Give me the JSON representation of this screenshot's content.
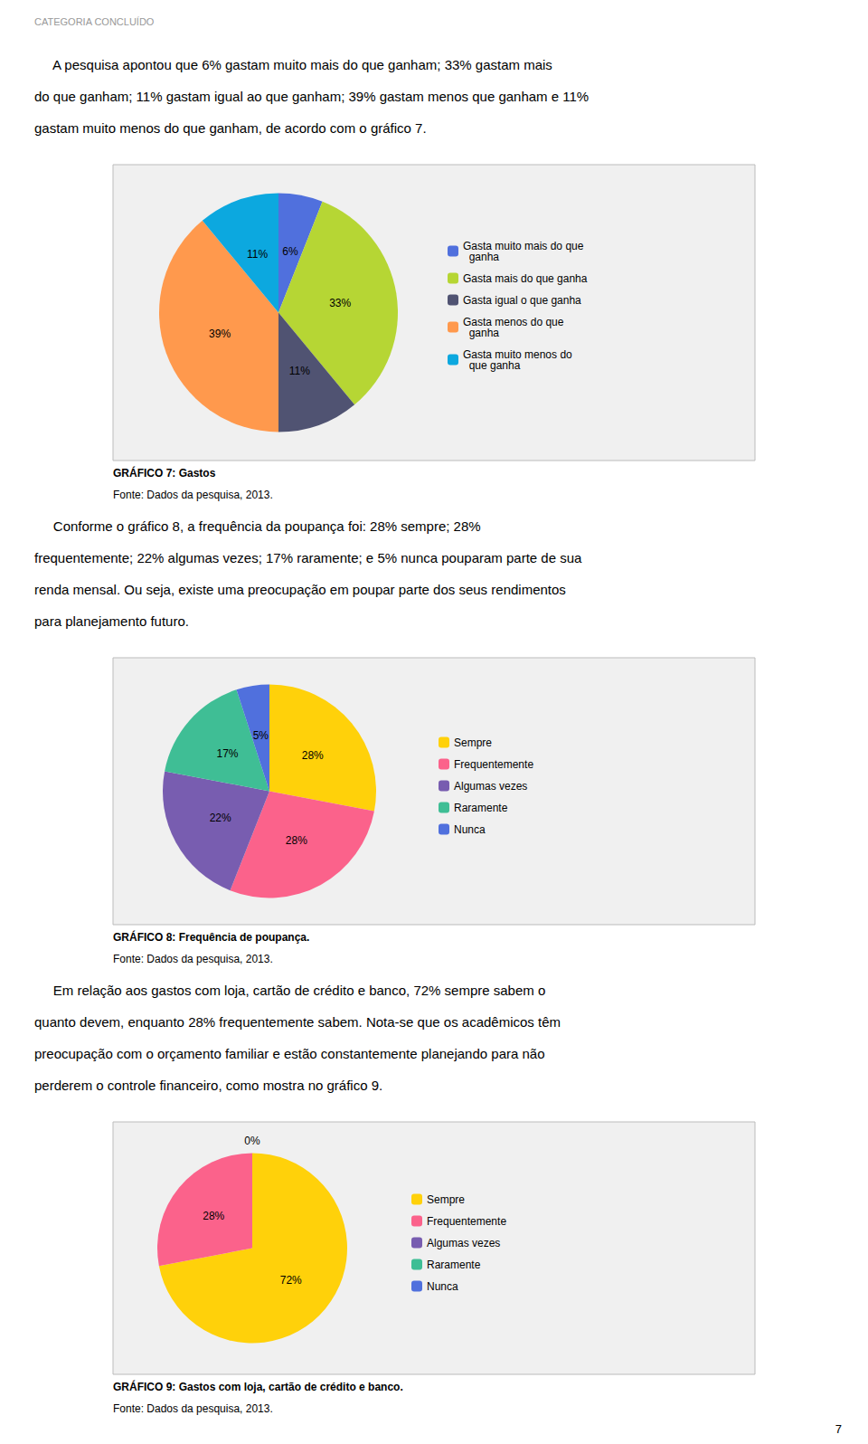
{
  "header": "CATEGORIA CONCLUÍDO",
  "paragraphs": [
    [
      "     A pesquisa apontou que 6% gastam muito mais do que ganham; 33% gastam mais",
      "do que ganham; 11% gastam igual ao que ganham; 39% gastam menos que ganham e 11%",
      "gastam muito menos do que ganham, de acordo com o gráfico 7."
    ],
    [
      "     Conforme o gráfico 8, a frequência da poupança foi: 28% sempre; 28%",
      "frequentemente; 22% algumas vezes; 17% raramente; e 5% nunca pouparam parte de sua",
      "renda mensal. Ou seja, existe uma preocupação em poupar parte dos seus rendimentos",
      "para planejamento futuro."
    ],
    [
      "     Em relação aos gastos com loja, cartão de crédito e banco, 72% sempre sabem o",
      "quanto devem, enquanto 28% frequentemente sabem. Nota-se que os acadêmicos têm",
      "preocupação com o orçamento familiar e estão constantemente planejando para não",
      "perderem o controle financeiro, como mostra no gráfico 9."
    ]
  ],
  "page_number": "7",
  "chart_data": [
    {
      "type": "pie",
      "title": "GRÁFICO 7: Gastos",
      "subtitle": "Fonte: Dados da pesquisa, 2013.",
      "categories": [
        "Gasta muito mais do que\n  ganha",
        "Gasta mais do que ganha",
        "Gasta igual o que ganha",
        "Gasta menos do que\n  ganha",
        "Gasta muito menos do\n  que ganha"
      ],
      "values": [
        6,
        33,
        11,
        39,
        11
      ],
      "value_labels": [
        "6%",
        "33%",
        "11%",
        "39%",
        "11%"
      ],
      "data_labels": true,
      "legend": "right"
    },
    {
      "type": "pie",
      "title": "GRÁFICO 8: Frequência de poupança.",
      "subtitle": "Fonte: Dados da pesquisa, 2013.",
      "categories": [
        "Sempre",
        "Frequentemente",
        "Algumas vezes",
        "Raramente",
        "Nunca"
      ],
      "values": [
        28,
        28,
        22,
        17,
        5
      ],
      "value_labels": [
        "28%",
        "28%",
        "22%",
        "17%",
        "5%"
      ],
      "data_labels": true,
      "legend": "right"
    },
    {
      "type": "pie",
      "title": "GRÁFICO 9: Gastos com loja, cartão de crédito e banco.",
      "subtitle": "Fonte: Dados da pesquisa, 2013.",
      "categories": [
        "Sempre",
        "Frequentemente",
        "Algumas vezes",
        "Raramente",
        "Nunca"
      ],
      "values": [
        72,
        28,
        null,
        null,
        null
      ],
      "value_labels": [
        "72%",
        "28%",
        null,
        null,
        null
      ],
      "annotations": [
        "0%"
      ],
      "data_labels": true,
      "legend": "right"
    }
  ]
}
